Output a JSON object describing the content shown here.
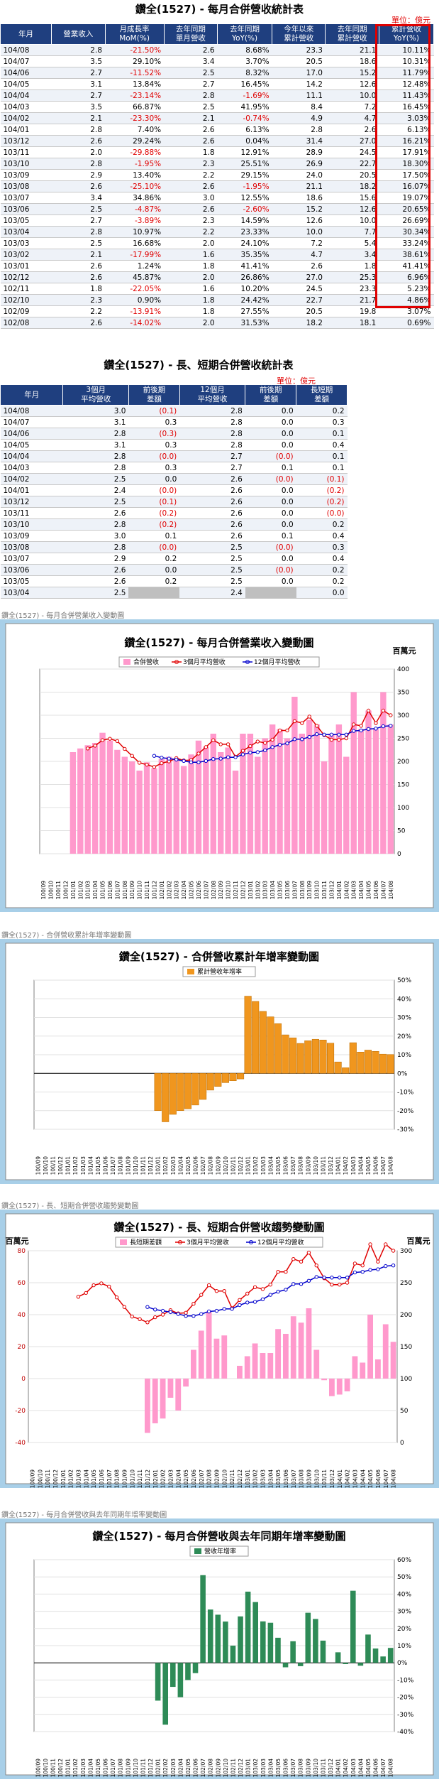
{
  "table1": {
    "title": "鑽全(1527) - 每月合併營收統計表",
    "unit": "單位：億元",
    "headers": [
      "年月",
      "營業收入",
      "月成長率\nMoM(%)",
      "去年同期\n單月營收",
      "去年同期\nYoY(%)",
      "今年以來\n累計營收",
      "去年同期\n累計營收",
      "累計營收\nYoY(%)"
    ],
    "rows": [
      [
        "104/08",
        "2.8",
        "-21.50%",
        "2.6",
        "8.68%",
        "23.3",
        "21.1",
        "10.11%"
      ],
      [
        "104/07",
        "3.5",
        "29.10%",
        "3.4",
        "3.70%",
        "20.5",
        "18.6",
        "10.31%"
      ],
      [
        "104/06",
        "2.7",
        "-11.52%",
        "2.5",
        "8.32%",
        "17.0",
        "15.2",
        "11.79%"
      ],
      [
        "104/05",
        "3.1",
        "13.84%",
        "2.7",
        "16.45%",
        "14.2",
        "12.6",
        "12.48%"
      ],
      [
        "104/04",
        "2.7",
        "-23.14%",
        "2.8",
        "-1.69%",
        "11.1",
        "10.0",
        "11.43%"
      ],
      [
        "104/03",
        "3.5",
        "66.87%",
        "2.5",
        "41.95%",
        "8.4",
        "7.2",
        "16.45%"
      ],
      [
        "104/02",
        "2.1",
        "-23.30%",
        "2.1",
        "-0.74%",
        "4.9",
        "4.7",
        "3.03%"
      ],
      [
        "104/01",
        "2.8",
        "7.40%",
        "2.6",
        "6.13%",
        "2.8",
        "2.6",
        "6.13%"
      ],
      [
        "103/12",
        "2.6",
        "29.24%",
        "2.6",
        "0.04%",
        "31.4",
        "27.0",
        "16.21%"
      ],
      [
        "103/11",
        "2.0",
        "-29.88%",
        "1.8",
        "12.91%",
        "28.9",
        "24.5",
        "17.91%"
      ],
      [
        "103/10",
        "2.8",
        "-1.95%",
        "2.3",
        "25.51%",
        "26.9",
        "22.7",
        "18.30%"
      ],
      [
        "103/09",
        "2.9",
        "13.40%",
        "2.2",
        "29.15%",
        "24.0",
        "20.5",
        "17.50%"
      ],
      [
        "103/08",
        "2.6",
        "-25.10%",
        "2.6",
        "-1.95%",
        "21.1",
        "18.2",
        "16.07%"
      ],
      [
        "103/07",
        "3.4",
        "34.86%",
        "3.0",
        "12.55%",
        "18.6",
        "15.6",
        "19.07%"
      ],
      [
        "103/06",
        "2.5",
        "-4.87%",
        "2.6",
        "-2.60%",
        "15.2",
        "12.6",
        "20.65%"
      ],
      [
        "103/05",
        "2.7",
        "-3.89%",
        "2.3",
        "14.59%",
        "12.6",
        "10.0",
        "26.69%"
      ],
      [
        "103/04",
        "2.8",
        "10.97%",
        "2.2",
        "23.33%",
        "10.0",
        "7.7",
        "30.34%"
      ],
      [
        "103/03",
        "2.5",
        "16.68%",
        "2.0",
        "24.10%",
        "7.2",
        "5.4",
        "33.24%"
      ],
      [
        "103/02",
        "2.1",
        "-17.99%",
        "1.6",
        "35.35%",
        "4.7",
        "3.4",
        "38.61%"
      ],
      [
        "103/01",
        "2.6",
        "1.24%",
        "1.8",
        "41.41%",
        "2.6",
        "1.8",
        "41.41%"
      ],
      [
        "102/12",
        "2.6",
        "45.87%",
        "2.0",
        "26.86%",
        "27.0",
        "25.3",
        "6.96%"
      ],
      [
        "102/11",
        "1.8",
        "-22.05%",
        "1.6",
        "10.20%",
        "24.5",
        "23.3",
        "5.23%"
      ],
      [
        "102/10",
        "2.3",
        "0.90%",
        "1.8",
        "24.42%",
        "22.7",
        "21.7",
        "4.86%"
      ],
      [
        "102/09",
        "2.2",
        "-13.91%",
        "1.8",
        "27.55%",
        "20.5",
        "19.8",
        "3.07%"
      ],
      [
        "102/08",
        "2.6",
        "-14.02%",
        "2.0",
        "31.53%",
        "18.2",
        "18.1",
        "0.69%"
      ]
    ]
  },
  "table2": {
    "title": "鑽全(1527) - 長、短期合併營收統計表",
    "unit": "單位：億元",
    "headers": [
      "年月",
      "3個月\n平均營收",
      "前後期\n差額",
      "12個月\n平均營收",
      "前後期\n差額",
      "長短期\n差額"
    ],
    "rows": [
      [
        "104/08",
        "3.0",
        "(0.1)",
        "2.8",
        "0.0",
        "0.2"
      ],
      [
        "104/07",
        "3.1",
        "0.3",
        "2.8",
        "0.0",
        "0.3"
      ],
      [
        "104/06",
        "2.8",
        "(0.3)",
        "2.8",
        "0.0",
        "0.1"
      ],
      [
        "104/05",
        "3.1",
        "0.3",
        "2.8",
        "0.0",
        "0.4"
      ],
      [
        "104/04",
        "2.8",
        "(0.0)",
        "2.7",
        "(0.0)",
        "0.1"
      ],
      [
        "104/03",
        "2.8",
        "0.3",
        "2.7",
        "0.1",
        "0.1"
      ],
      [
        "104/02",
        "2.5",
        "0.0",
        "2.6",
        "(0.0)",
        "(0.1)"
      ],
      [
        "104/01",
        "2.4",
        "(0.0)",
        "2.6",
        "0.0",
        "(0.2)"
      ],
      [
        "103/12",
        "2.5",
        "(0.1)",
        "2.6",
        "0.0",
        "(0.2)"
      ],
      [
        "103/11",
        "2.6",
        "(0.2)",
        "2.6",
        "0.0",
        "(0.0)"
      ],
      [
        "103/10",
        "2.8",
        "(0.2)",
        "2.6",
        "0.0",
        "0.2"
      ],
      [
        "103/09",
        "3.0",
        "0.1",
        "2.6",
        "0.1",
        "0.4"
      ],
      [
        "103/08",
        "2.8",
        "(0.0)",
        "2.5",
        "(0.0)",
        "0.3"
      ],
      [
        "103/07",
        "2.9",
        "0.2",
        "2.5",
        "0.0",
        "0.4"
      ],
      [
        "103/06",
        "2.6",
        "0.0",
        "2.5",
        "(0.0)",
        "0.2"
      ],
      [
        "103/05",
        "2.6",
        "0.2",
        "2.5",
        "0.0",
        "0.2"
      ],
      [
        "103/04",
        "2.5",
        "",
        "2.4",
        "",
        "0.0"
      ]
    ]
  },
  "months": [
    "100/09",
    "100/10",
    "100/11",
    "100/12",
    "101/01",
    "101/02",
    "101/03",
    "101/04",
    "101/05",
    "101/06",
    "101/07",
    "101/08",
    "101/09",
    "101/10",
    "101/11",
    "101/12",
    "102/01",
    "102/02",
    "102/03",
    "102/04",
    "102/05",
    "102/06",
    "102/07",
    "102/08",
    "102/09",
    "102/10",
    "102/11",
    "102/12",
    "103/01",
    "103/02",
    "103/03",
    "103/04",
    "103/05",
    "103/06",
    "103/07",
    "103/08",
    "103/09",
    "103/10",
    "103/11",
    "103/12",
    "104/01",
    "104/02",
    "104/03",
    "104/04",
    "104/05",
    "104/06",
    "104/07",
    "104/08"
  ],
  "chart1": {
    "caption": "鑽全(1527) - 每月合併營業收入變動圖",
    "title": "鑽全(1527) - 每月合併營業收入變動圖",
    "unit": "百萬元",
    "legend": [
      "合併營收",
      "3個月平均營收",
      "12個月平均營收"
    ],
    "colors": {
      "bar": "#ff99cc",
      "ma3": "#e00000",
      "ma12": "#0000cc"
    },
    "yticks": [
      "0",
      "50",
      "100",
      "150",
      "200",
      "250",
      "300",
      "350",
      "400"
    ]
  },
  "chart2": {
    "caption": "鑽全(1527) - 合併營收累計年增率變動圖",
    "title": "鑽全(1527) - 合併營收累計年增率變動圖",
    "legend": [
      "累計營收年增率"
    ],
    "colors": {
      "bar": "#f0961e"
    },
    "yticks": [
      "-30%",
      "-20%",
      "-10%",
      "0%",
      "10%",
      "20%",
      "30%",
      "40%",
      "50%"
    ]
  },
  "chart3": {
    "caption": "鑽全(1527) - 長、短期合併營收趨勢變動圖",
    "title": "鑽全(1527) - 長、短期合併營收趨勢變動圖",
    "unit_left": "百萬元",
    "unit_right": "百萬元",
    "legend": [
      "長短期差額",
      "3個月平均營收",
      "12個月平均營收"
    ],
    "colors": {
      "bar": "#ff99cc",
      "ma3": "#e00000",
      "ma12": "#0000cc"
    },
    "yticks_left": [
      "-40",
      "-20",
      "0",
      "20",
      "40",
      "60",
      "80"
    ],
    "yticks_right": [
      "0",
      "50",
      "100",
      "150",
      "200",
      "250",
      "300"
    ]
  },
  "chart4": {
    "caption": "鑽全(1527) - 每月合併營收與去年同期年增率變動圖",
    "title": "鑽全(1527) - 每月合併營收與去年同期年增率變動圖",
    "legend": [
      "營收年增率"
    ],
    "colors": {
      "bar": "#2e8b57"
    },
    "yticks": [
      "-40%",
      "-30%",
      "-20%",
      "-10%",
      "0%",
      "10%",
      "20%",
      "30%",
      "40%",
      "50%",
      "60%"
    ]
  },
  "chart_data": [
    {
      "type": "bar",
      "title": "鑽全(1527) - 每月合併營業收入變動圖",
      "ylim": [
        0,
        400
      ],
      "series": [
        {
          "name": "合併營收",
          "values": [
            null,
            null,
            null,
            null,
            220,
            228,
            235,
            240,
            262,
            245,
            225,
            210,
            200,
            180,
            198,
            185,
            205,
            210,
            205,
            190,
            215,
            245,
            232,
            260,
            220,
            230,
            180,
            260,
            260,
            210,
            250,
            280,
            270,
            250,
            340,
            260,
            290,
            280,
            200,
            260,
            280,
            210,
            350,
            270,
            310,
            270,
            350,
            280
          ]
        },
        {
          "name": "3個月平均營收",
          "values": [
            null,
            null,
            null,
            null,
            null,
            null,
            228,
            234,
            246,
            249,
            244,
            227,
            212,
            197,
            193,
            188,
            196,
            200,
            207,
            202,
            203,
            217,
            231,
            246,
            237,
            237,
            210,
            223,
            233,
            243,
            240,
            247,
            267,
            267,
            287,
            283,
            297,
            277,
            257,
            247,
            247,
            250,
            280,
            277,
            310,
            283,
            310,
            300
          ]
        },
        {
          "name": "12個月平均營收",
          "values": [
            null,
            null,
            null,
            null,
            null,
            null,
            null,
            null,
            null,
            null,
            null,
            null,
            null,
            null,
            null,
            212,
            208,
            206,
            204,
            201,
            198,
            198,
            201,
            205,
            206,
            209,
            209,
            215,
            219,
            220,
            224,
            231,
            236,
            239,
            248,
            248,
            253,
            259,
            258,
            258,
            258,
            258,
            266,
            267,
            270,
            271,
            276,
            277
          ]
        }
      ],
      "categories_ref": "months"
    },
    {
      "type": "bar",
      "title": "鑽全(1527) - 合併營收累計年增率變動圖",
      "ylim": [
        -30,
        50
      ],
      "series": [
        {
          "name": "累計營收年增率",
          "values": [
            null,
            null,
            null,
            null,
            null,
            null,
            null,
            null,
            null,
            null,
            null,
            null,
            null,
            null,
            null,
            null,
            -20,
            -26,
            -22,
            -20,
            -19,
            -17,
            -14,
            -9,
            -7,
            -5,
            -4,
            -3,
            41.41,
            38.61,
            33.24,
            30.34,
            26.69,
            20.65,
            19.07,
            16.07,
            17.5,
            18.3,
            17.91,
            16.21,
            6.13,
            3.03,
            16.45,
            11.43,
            12.48,
            11.79,
            10.31,
            10.11
          ]
        }
      ],
      "categories_ref": "months"
    },
    {
      "type": "bar",
      "title": "鑽全(1527) - 長、短期合併營收趨勢變動圖",
      "ylim_left": [
        -40,
        80
      ],
      "ylim_right": [
        0,
        300
      ],
      "series": [
        {
          "name": "長短期差額",
          "values": [
            null,
            null,
            null,
            null,
            null,
            null,
            null,
            null,
            null,
            null,
            null,
            null,
            null,
            null,
            null,
            -34,
            -28,
            -25,
            -12,
            -20,
            -5,
            18,
            30,
            42,
            25,
            27,
            0,
            8,
            14,
            22,
            16,
            16,
            31,
            28,
            39,
            35,
            44,
            18,
            -1,
            -11,
            -10,
            -8,
            14,
            10,
            40,
            12,
            34,
            23
          ]
        },
        {
          "name": "3個月平均營收",
          "values": [
            null,
            null,
            null,
            null,
            null,
            null,
            228,
            234,
            246,
            249,
            244,
            227,
            212,
            197,
            193,
            188,
            196,
            200,
            207,
            202,
            203,
            217,
            231,
            246,
            237,
            237,
            210,
            223,
            233,
            243,
            240,
            247,
            267,
            267,
            287,
            283,
            297,
            277,
            257,
            247,
            247,
            250,
            280,
            277,
            310,
            283,
            310,
            300
          ]
        },
        {
          "name": "12個月平均營收",
          "values": [
            null,
            null,
            null,
            null,
            null,
            null,
            null,
            null,
            null,
            null,
            null,
            null,
            null,
            null,
            null,
            212,
            208,
            206,
            204,
            201,
            198,
            198,
            201,
            205,
            206,
            209,
            209,
            215,
            219,
            220,
            224,
            231,
            236,
            239,
            248,
            248,
            253,
            259,
            258,
            258,
            258,
            258,
            266,
            267,
            270,
            271,
            276,
            277
          ]
        }
      ],
      "categories_ref": "months"
    },
    {
      "type": "bar",
      "title": "鑽全(1527) - 每月合併營收與去年同期年增率變動圖",
      "ylim": [
        -40,
        60
      ],
      "series": [
        {
          "name": "營收年增率",
          "values": [
            null,
            null,
            null,
            null,
            null,
            null,
            null,
            null,
            null,
            null,
            null,
            null,
            null,
            null,
            null,
            null,
            -22,
            -36,
            -14,
            -20,
            -10,
            -6,
            51,
            31,
            28,
            24,
            10,
            27,
            41.41,
            35.35,
            24.1,
            23.33,
            14.59,
            -2.6,
            12.55,
            -1.95,
            29.15,
            25.51,
            12.91,
            0.04,
            6.13,
            -0.74,
            41.95,
            -1.69,
            16.45,
            8.32,
            3.7,
            8.68
          ]
        }
      ],
      "categories_ref": "months"
    }
  ]
}
